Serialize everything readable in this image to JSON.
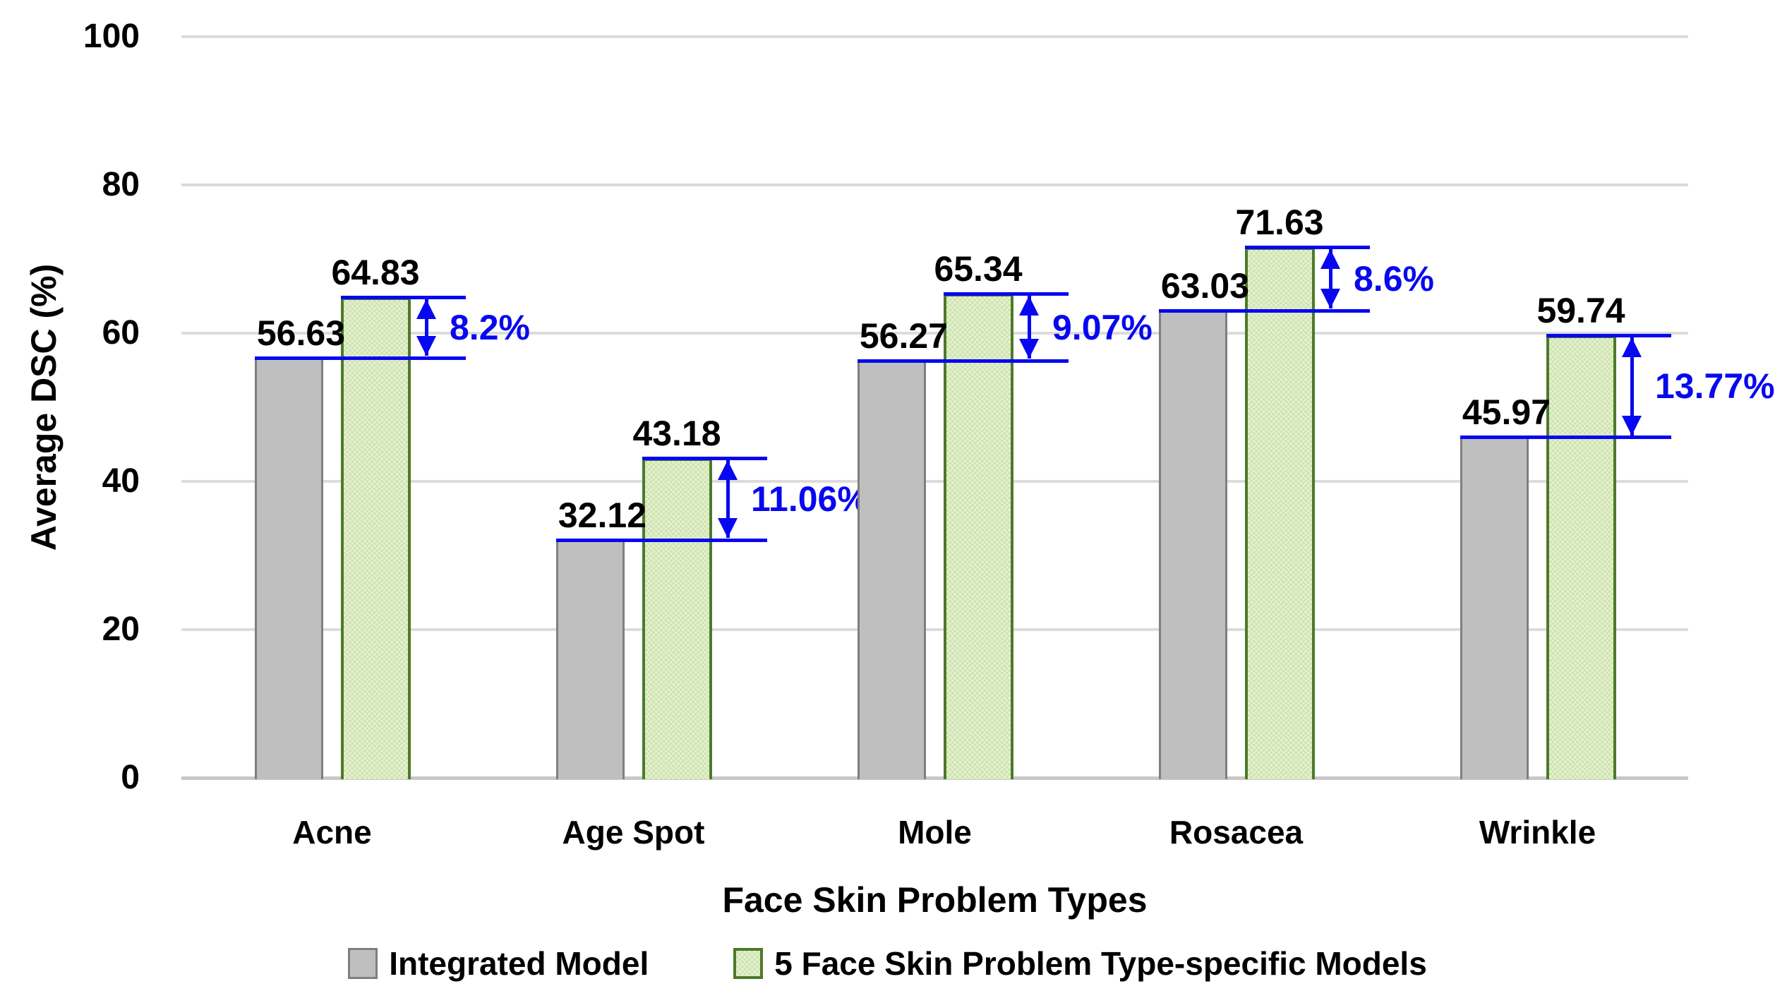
{
  "chart_data": {
    "type": "bar",
    "categories": [
      "Acne",
      "Age Spot",
      "Mole",
      "Rosacea",
      "Wrinkle"
    ],
    "series": [
      {
        "name": "Integrated Model",
        "values": [
          56.63,
          32.12,
          56.27,
          63.03,
          45.97
        ],
        "fill": "#bfbfbf",
        "border": "#7f7f7f"
      },
      {
        "name": "5 Face Skin Problem Type-specific Models",
        "values": [
          64.83,
          43.18,
          65.34,
          71.63,
          59.74
        ],
        "fill_light": "#e4f0d2",
        "fill_dark": "#cfe4ae",
        "border": "#4c7a2b"
      }
    ],
    "diff_labels": [
      "8.2%",
      "11.06%",
      "9.07%",
      "8.6%",
      "13.77%"
    ],
    "diff_color": "#0808f0",
    "xlabel": "Face Skin Problem Types",
    "ylabel": "Average DSC (%)",
    "yticks": [
      0,
      20,
      40,
      60,
      80,
      100
    ],
    "ylim": [
      0,
      100
    ],
    "grid": "horizontal",
    "grid_color": "#dcdcdc",
    "axis_line_color": "#c8c8c8",
    "legend_position": "bottom",
    "value_label_color": "#000000"
  }
}
